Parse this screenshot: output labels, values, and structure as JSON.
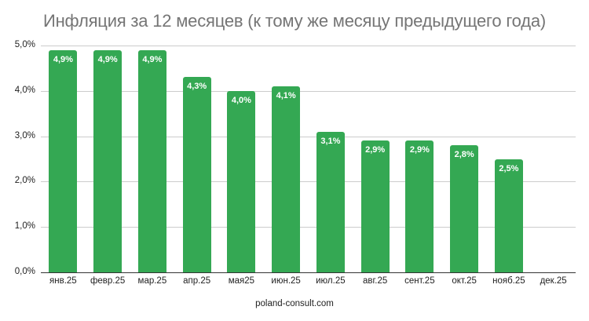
{
  "title": "Инфляция за 12 месяцев (к тому же месяцу предыдущего года)",
  "source": "poland-consult.com",
  "colors": {
    "bar": "#34a853",
    "bar_label": "#ffffff",
    "grid": "#cccccc",
    "title": "#757575"
  },
  "chart_data": {
    "type": "bar",
    "title": "Инфляция за 12 месяцев (к тому же месяцу предыдущего года)",
    "xlabel": "",
    "ylabel": "",
    "categories": [
      "янв.25",
      "февр.25",
      "мар.25",
      "апр.25",
      "мая25",
      "июн.25",
      "июл.25",
      "авг.25",
      "сент.25",
      "окт.25",
      "нояб.25",
      "дек.25"
    ],
    "values": [
      4.9,
      4.9,
      4.9,
      4.3,
      4.0,
      4.1,
      3.1,
      2.9,
      2.9,
      2.8,
      2.5,
      null
    ],
    "data_labels": [
      "4,9%",
      "4,9%",
      "4,9%",
      "4,3%",
      "4,0%",
      "4,1%",
      "3,1%",
      "2,9%",
      "2,9%",
      "2,8%",
      "2,5%",
      ""
    ],
    "yticks": [
      "0,0%",
      "1,0%",
      "2,0%",
      "3,0%",
      "4,0%",
      "5,0%"
    ],
    "ylim": [
      0,
      5
    ],
    "grid": true,
    "legend": "none"
  }
}
